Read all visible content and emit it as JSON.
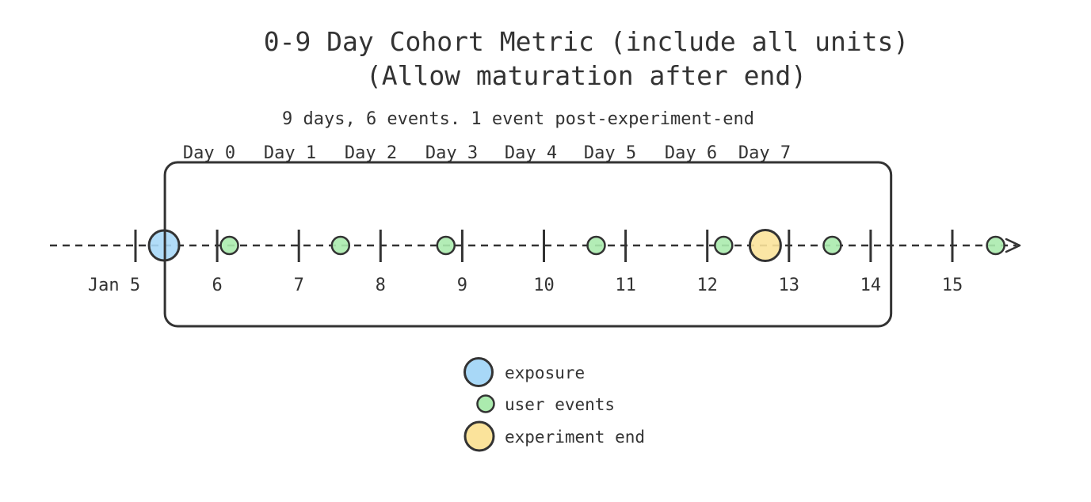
{
  "title": {
    "line1": "0-9 Day Cohort Metric (include all units)",
    "line2": "(Allow maturation after end)"
  },
  "subtitle": "9 days, 6 events. 1 event post-experiment-end",
  "colors": {
    "exposure": "#A8D8F7",
    "user_event": "#ABEBAE",
    "experiment_end": "#FBE39B",
    "ink": "#333333"
  },
  "chart_data": {
    "type": "timeline",
    "title": "0-9 Day Cohort Metric (include all units) (Allow maturation after end)",
    "annotation": "9 days, 6 events. 1 event post-experiment-end",
    "axis": {
      "month": "Jan",
      "ticks": [
        5,
        6,
        7,
        8,
        9,
        10,
        11,
        12,
        13,
        14,
        15
      ],
      "tick_labels": [
        "Jan 5",
        "6",
        "7",
        "8",
        "9",
        "10",
        "11",
        "12",
        "13",
        "14",
        "15"
      ],
      "arrow_at_end": true
    },
    "day_labels": [
      "Day 0",
      "Day 1",
      "Day 2",
      "Day 3",
      "Day 4",
      "Day 5",
      "Day 6",
      "Day 7"
    ],
    "window": {
      "start_day": 5.36,
      "end_day": 14.25,
      "length_days": 9
    },
    "events": [
      {
        "type": "exposure",
        "day": 5.35
      },
      {
        "type": "user_event",
        "day": 6.15
      },
      {
        "type": "user_event",
        "day": 7.51
      },
      {
        "type": "user_event",
        "day": 8.8
      },
      {
        "type": "user_event",
        "day": 10.64
      },
      {
        "type": "user_event",
        "day": 12.2
      },
      {
        "type": "experiment_end",
        "day": 12.71
      },
      {
        "type": "user_event",
        "day": 13.53
      },
      {
        "type": "user_event",
        "day": 15.53
      }
    ]
  },
  "legend": [
    {
      "key": "exposure",
      "label": "exposure"
    },
    {
      "key": "user_event",
      "label": "user events"
    },
    {
      "key": "experiment_end",
      "label": "experiment end"
    }
  ]
}
